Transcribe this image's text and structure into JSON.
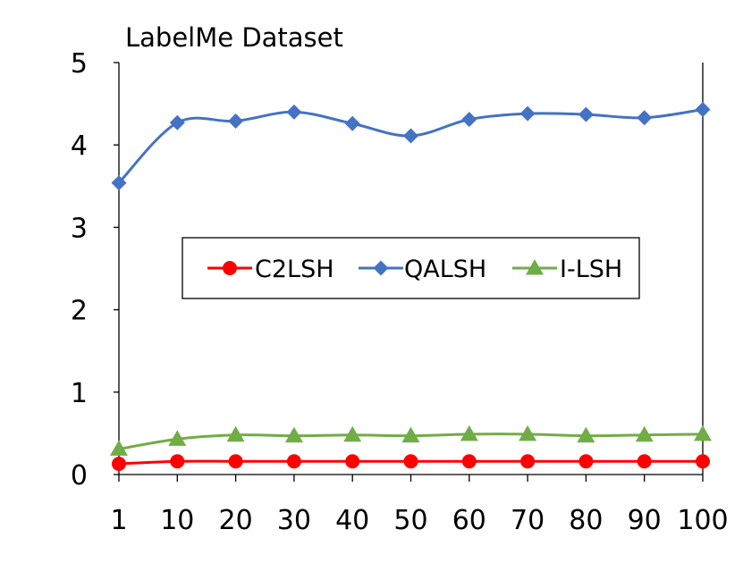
{
  "chart_data": {
    "type": "line",
    "title": "LabelMe Dataset",
    "xlabel": "",
    "ylabel": "",
    "x": [
      1,
      10,
      20,
      30,
      40,
      50,
      60,
      70,
      80,
      90,
      100
    ],
    "x_tick_labels": [
      "1",
      "10",
      "20",
      "30",
      "40",
      "50",
      "60",
      "70",
      "80",
      "90",
      "100"
    ],
    "y_ticks": [
      0,
      1,
      2,
      3,
      4,
      5
    ],
    "ylim": [
      0,
      5
    ],
    "grid": false,
    "legend_position": "center",
    "series": [
      {
        "name": "C2LSH",
        "color": "#ff0000",
        "marker": "circle",
        "values": [
          0.13,
          0.16,
          0.16,
          0.16,
          0.16,
          0.16,
          0.16,
          0.16,
          0.16,
          0.16,
          0.16
        ]
      },
      {
        "name": "QALSH",
        "color": "#4472c4",
        "marker": "diamond",
        "values": [
          3.54,
          4.27,
          4.29,
          4.4,
          4.26,
          4.11,
          4.31,
          4.38,
          4.37,
          4.33,
          4.43
        ]
      },
      {
        "name": "I-LSH",
        "color": "#70ad47",
        "marker": "triangle",
        "values": [
          0.31,
          0.43,
          0.48,
          0.47,
          0.48,
          0.47,
          0.49,
          0.49,
          0.47,
          0.48,
          0.49
        ]
      }
    ]
  }
}
